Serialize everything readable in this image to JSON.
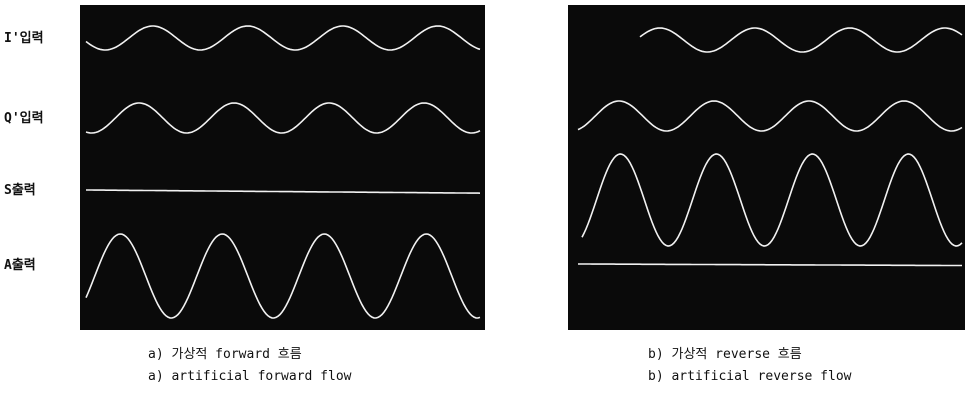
{
  "left_panel": {
    "signal_labels": [
      "I'입력",
      "Q'입력",
      "S출력",
      "A출력"
    ],
    "caption_ko": "a) 가상적 forward 흐름",
    "caption_en": "a) artificial forward flow"
  },
  "right_panel": {
    "caption_ko": "b) 가상적 reverse 흐름",
    "caption_en": "b) artificial reverse flow"
  }
}
